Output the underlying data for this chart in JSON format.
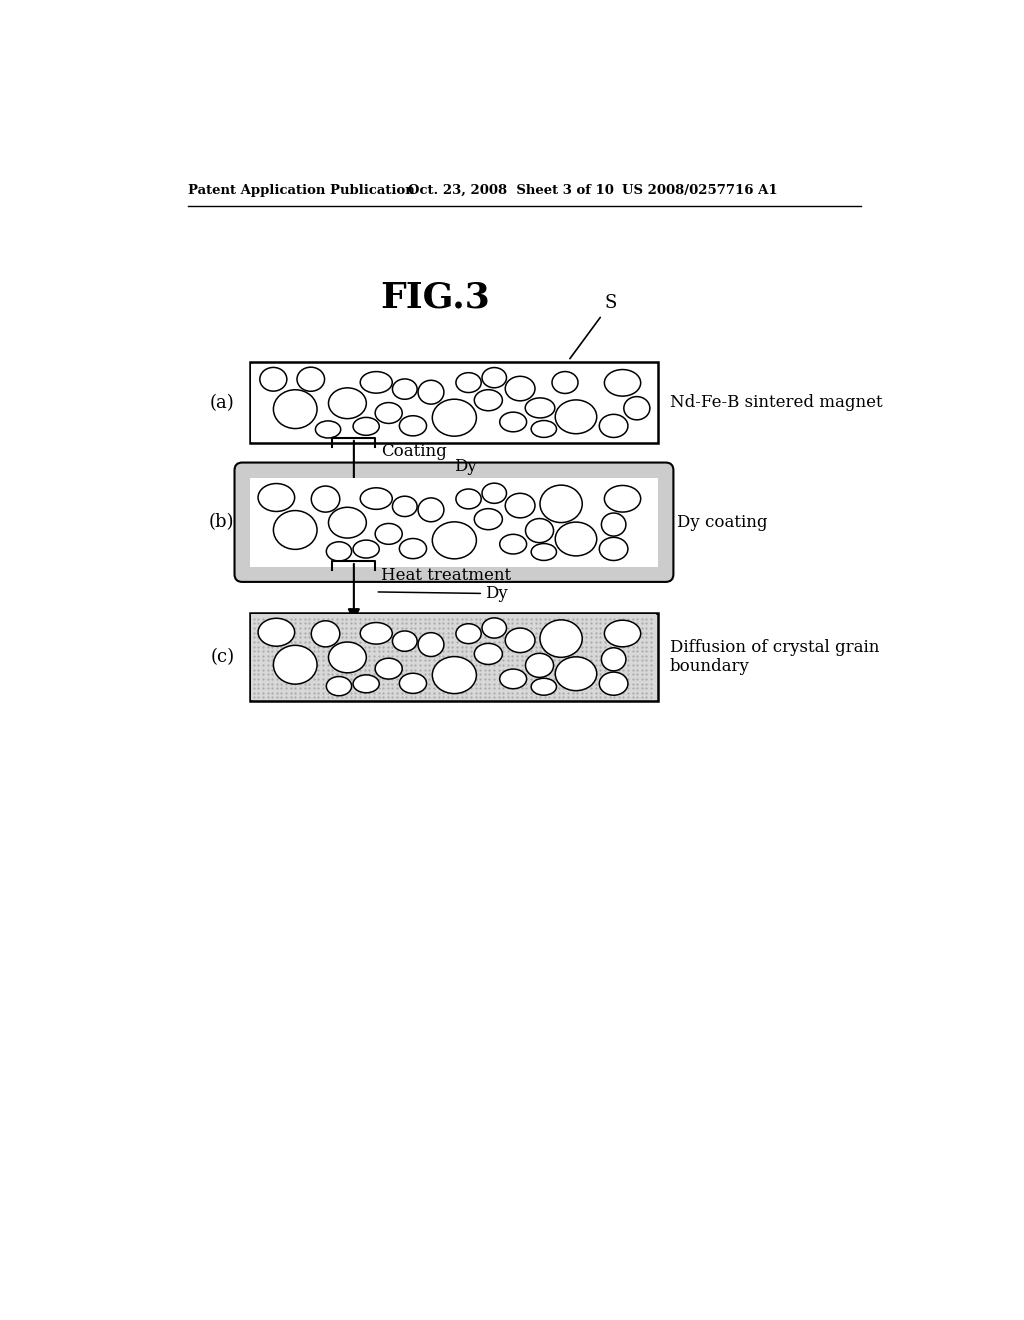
{
  "fig_title": "FIG.3",
  "header_left": "Patent Application Publication",
  "header_mid": "Oct. 23, 2008  Sheet 3 of 10",
  "header_right": "US 2008/0257716 A1",
  "panel_a_label": "(a)",
  "panel_b_label": "(b)",
  "panel_c_label": "(c)",
  "label_a": "Nd-Fe-B sintered magnet",
  "label_b": "Dy coating",
  "label_c": "Diffusion of crystal grain\nboundary",
  "arrow1_text": "Coating",
  "arrow1_dy_text": "Dy",
  "arrow2_text": "Heat treatment",
  "arrow2_dy_text": "Dy",
  "s_label": "S",
  "background_color": "#ffffff",
  "dotted_fill": "#d8d8d8",
  "coating_gray": "#cccccc"
}
